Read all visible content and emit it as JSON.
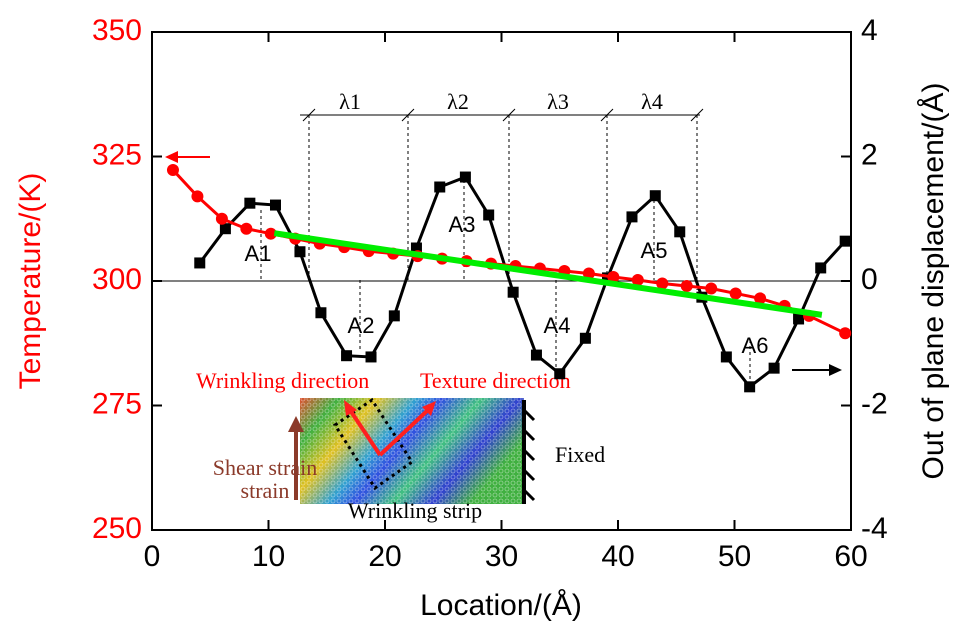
{
  "chart_data": {
    "type": "line",
    "x_label": "Location/(Å)",
    "y_label": "Temperature/(K)",
    "y2_label": "Out of plane displacement/(Å)",
    "xlim": [
      0,
      60
    ],
    "xticks": [
      0,
      10,
      20,
      30,
      40,
      50,
      60
    ],
    "ylim": [
      250,
      350
    ],
    "yticks": [
      250,
      275,
      300,
      325,
      350
    ],
    "y2lim": [
      -4,
      4
    ],
    "y2ticks": [
      -4,
      -2,
      0,
      2,
      4
    ],
    "series": [
      {
        "color": "#ff0000",
        "marker": "circle",
        "x": [
          1.8,
          3.9,
          6.0,
          8.1,
          10.2,
          12.3,
          14.4,
          16.5,
          18.6,
          20.7,
          22.8,
          24.9,
          27.0,
          29.1,
          31.2,
          33.3,
          35.4,
          37.5,
          39.6,
          41.7,
          43.8,
          45.9,
          48.0,
          50.1,
          52.2,
          54.3,
          56.4,
          59.5
        ],
        "values": [
          322.3,
          317,
          312.5,
          310.5,
          309.5,
          308.5,
          307.5,
          306.8,
          306,
          305.5,
          305,
          304.5,
          304,
          303.5,
          303,
          302.5,
          302,
          301.5,
          300.8,
          300.2,
          299.5,
          299,
          298.5,
          297.5,
          296.5,
          295,
          293,
          289.5
        ]
      },
      {
        "color": "#000000",
        "marker": "square",
        "axis": "y2",
        "x": [
          4.1,
          6.3,
          8.4,
          10.6,
          12.7,
          14.5,
          16.7,
          18.8,
          20.8,
          22.7,
          24.7,
          26.9,
          28.9,
          31.0,
          33.0,
          35.0,
          37.2,
          39.1,
          41.2,
          43.2,
          45.3,
          47.2,
          49.3,
          51.3,
          53.4,
          55.5,
          57.4,
          59.5
        ],
        "values": [
          0.29,
          0.84,
          1.25,
          1.22,
          0.47,
          -0.51,
          -1.2,
          -1.22,
          -0.56,
          0.53,
          1.51,
          1.67,
          1.06,
          -0.18,
          -1.19,
          -1.49,
          -0.92,
          0.05,
          1.03,
          1.37,
          0.79,
          -0.26,
          -1.22,
          -1.7,
          -1.4,
          -0.61,
          0.21,
          0.64
        ]
      },
      {
        "color": "#00ee00",
        "marker": "none",
        "x": [
          10.5,
          57.5
        ],
        "values": [
          309.6,
          293.2
        ]
      }
    ],
    "annotations": {
      "wavelengths": [
        "λ1",
        "λ2",
        "λ3",
        "λ4"
      ],
      "amplitudes": [
        "A1",
        "A2",
        "A3",
        "A4",
        "A5",
        "A6"
      ],
      "inset": [
        "Wrinkling direction",
        "Texture direction",
        "Shear strain",
        "Wrinkling strip",
        "Fixed"
      ]
    }
  }
}
